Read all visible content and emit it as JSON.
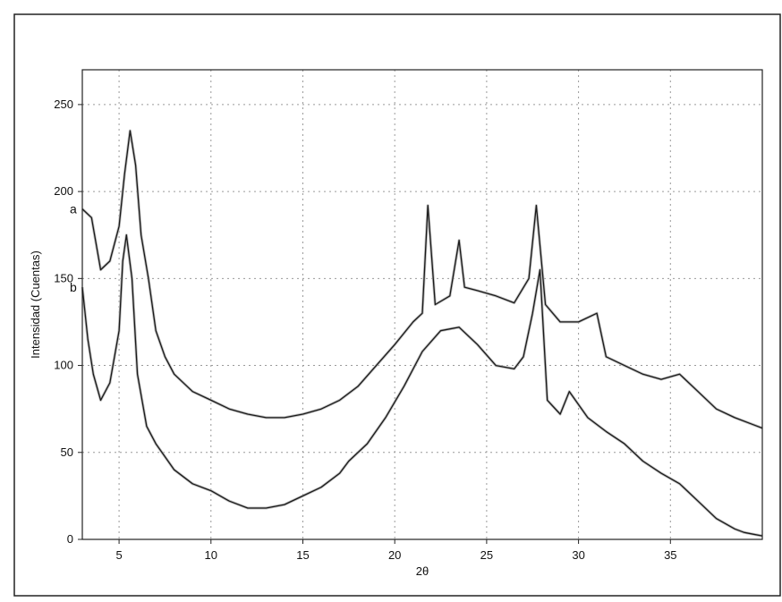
{
  "chart_data": {
    "type": "line",
    "title": "",
    "xlabel": "2θ",
    "ylabel": "Intensidad (Cuentas)",
    "xlim": [
      3,
      40
    ],
    "ylim": [
      0,
      270
    ],
    "xticks": [
      5,
      10,
      15,
      20,
      25,
      30,
      35
    ],
    "yticks": [
      0,
      50,
      100,
      150,
      200,
      250
    ],
    "grid": true,
    "legend": "none",
    "colors": {
      "line": "#1a1a1a",
      "grid": "#9a9a9a",
      "frame": "#222222"
    },
    "series": [
      {
        "name": "a",
        "x": [
          3.0,
          3.5,
          4.0,
          4.5,
          5.0,
          5.3,
          5.6,
          5.9,
          6.2,
          6.6,
          7.0,
          7.5,
          8.0,
          9.0,
          10.0,
          11.0,
          12.0,
          13.0,
          14.0,
          15.0,
          16.0,
          17.0,
          18.0,
          19.0,
          20.0,
          21.0,
          21.5,
          21.8,
          22.2,
          23.0,
          23.5,
          23.8,
          24.5,
          25.5,
          26.5,
          27.3,
          27.7,
          28.2,
          29.0,
          30.0,
          31.0,
          31.5,
          32.5,
          33.5,
          34.5,
          35.5,
          36.5,
          37.5,
          38.5,
          39.5,
          40.0
        ],
        "values": [
          190,
          185,
          155,
          160,
          180,
          210,
          235,
          215,
          175,
          150,
          120,
          105,
          95,
          85,
          80,
          75,
          72,
          70,
          70,
          72,
          75,
          80,
          88,
          100,
          112,
          125,
          130,
          192,
          135,
          140,
          172,
          145,
          143,
          140,
          136,
          150,
          192,
          135,
          125,
          125,
          130,
          105,
          100,
          95,
          92,
          95,
          85,
          75,
          70,
          66,
          64
        ]
      },
      {
        "name": "b",
        "x": [
          3.0,
          3.3,
          3.6,
          4.0,
          4.5,
          5.0,
          5.2,
          5.4,
          5.7,
          6.0,
          6.5,
          7.0,
          8.0,
          9.0,
          10.0,
          11.0,
          12.0,
          13.0,
          14.0,
          15.0,
          16.0,
          17.0,
          17.5,
          18.5,
          19.5,
          20.5,
          21.5,
          22.5,
          23.5,
          24.5,
          25.5,
          26.5,
          27.0,
          27.5,
          27.9,
          28.3,
          29.0,
          29.5,
          30.5,
          31.5,
          32.5,
          33.5,
          34.5,
          35.5,
          36.5,
          37.5,
          38.5,
          39.0,
          39.5,
          40.0
        ],
        "values": [
          145,
          115,
          95,
          80,
          90,
          120,
          160,
          175,
          150,
          95,
          65,
          55,
          40,
          32,
          28,
          22,
          18,
          18,
          20,
          25,
          30,
          38,
          45,
          55,
          70,
          88,
          108,
          120,
          122,
          112,
          100,
          98,
          105,
          130,
          155,
          80,
          72,
          85,
          70,
          62,
          55,
          45,
          38,
          32,
          22,
          12,
          6,
          4,
          3,
          2
        ]
      }
    ]
  }
}
